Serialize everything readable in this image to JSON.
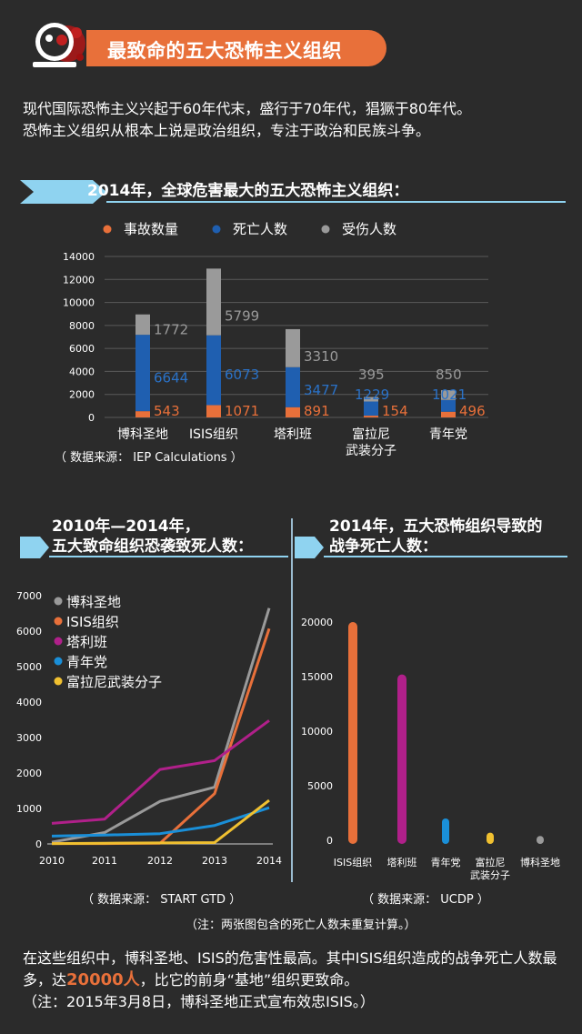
{
  "header": {
    "title": "最致命的五大恐怖主义组织"
  },
  "intro": {
    "line1": "现代国际恐怖主义兴起于60年代末，盛行于70年代，猖獗于80年代。",
    "line2": "恐怖主义组织从根本上说是政治组织，专注于政治和民族斗争。"
  },
  "colors": {
    "accent": "#e8703a",
    "ribbon": "#8fd3f0",
    "incidents": "#e8703a",
    "deaths": "#1f5fb0",
    "injuries": "#9a9a9a",
    "boko": "#9a9a9a",
    "isis": "#e8703a",
    "taliban": "#b0208a",
    "fulani": "#1a8fd8",
    "fmn": "#f0c030"
  },
  "section1": {
    "title": "2014年，全球危害最大的五大恐怖主义组织：",
    "source": "（ 数据来源：  IEP Calculations ）"
  },
  "section2": {
    "title_line1": "2010年—2014年，",
    "title_line2": "五大致命组织恐袭致死人数：",
    "source": "（ 数据来源：  START GTD ）"
  },
  "section3": {
    "title_line1": "2014年，五大恐怖组织导致的",
    "title_line2": "战争死亡人数：",
    "source": "（ 数据来源：  UCDP ）"
  },
  "note": "（注：两张图包含的死亡人数未重复计算。）",
  "bottom": {
    "part1": "在这些组织中，博科圣地、ISIS的危害性最高。其中ISIS组织造成的战争死亡人数最多，达",
    "highlight": "20000人",
    "part2": "，比它的前身“基地”组织更致命。",
    "line3": "（注：2015年3月8日，博科圣地正式宣布效忠ISIS。）"
  },
  "chart_data": [
    {
      "type": "bar",
      "stacked": true,
      "title": "2014年，全球危害最大的五大恐怖主义组织：",
      "categories": [
        "博科圣地",
        "ISIS组织",
        "塔利班",
        "富拉尼\n武装分子",
        "青年党"
      ],
      "series": [
        {
          "name": "事故数量",
          "values": [
            543,
            1071,
            891,
            154,
            496
          ]
        },
        {
          "name": "死亡人数",
          "values": [
            6644,
            6073,
            3477,
            1229,
            1021
          ]
        },
        {
          "name": "受伤人数",
          "values": [
            1772,
            5799,
            3310,
            395,
            850
          ]
        }
      ],
      "ylim": [
        0,
        14000
      ],
      "yticks": [
        0,
        2000,
        4000,
        6000,
        8000,
        10000,
        12000,
        14000
      ],
      "legend_position": "top",
      "grid": true
    },
    {
      "type": "line",
      "title": "2010年—2014年，五大致命组织恐袭致死人数：",
      "x": [
        2010,
        2011,
        2012,
        2013,
        2014
      ],
      "series": [
        {
          "name": "博科圣地",
          "values": [
            50,
            320,
            1200,
            1600,
            6650
          ]
        },
        {
          "name": "ISIS组织",
          "values": [
            10,
            10,
            20,
            1420,
            6070
          ]
        },
        {
          "name": "塔利班",
          "values": [
            580,
            700,
            2100,
            2350,
            3480
          ]
        },
        {
          "name": "青年党",
          "values": [
            220,
            250,
            290,
            520,
            1020
          ]
        },
        {
          "name": "富拉尼武装分子",
          "values": [
            10,
            20,
            30,
            40,
            1230
          ]
        }
      ],
      "ylim": [
        0,
        7000
      ],
      "yticks": [
        0,
        1000,
        2000,
        3000,
        4000,
        5000,
        6000,
        7000
      ],
      "legend_position": "top-left",
      "grid": false
    },
    {
      "type": "bar",
      "title": "2014年，五大恐怖组织导致的战争死亡人数：",
      "categories": [
        "ISIS组织",
        "塔利班",
        "青年党",
        "富拉尼\n武装分子",
        "博科圣地"
      ],
      "values": [
        20000,
        15200,
        2000,
        700,
        400
      ],
      "ylim": [
        0,
        20000
      ],
      "yticks": [
        0,
        5000,
        10000,
        15000,
        20000
      ],
      "grid": false
    }
  ]
}
